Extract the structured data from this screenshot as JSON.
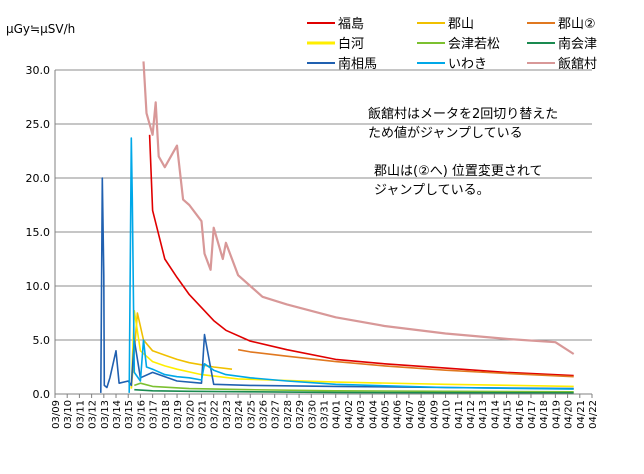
{
  "chart_data": {
    "type": "line",
    "ylabel": "μGy≒μSV/h",
    "ylim": [
      0,
      30
    ],
    "yticks": [
      0,
      5,
      10,
      15,
      20,
      25,
      30
    ],
    "ytick_labels": [
      "0.0",
      "5.0",
      "10.0",
      "15.0",
      "20.0",
      "25.0",
      "30.0"
    ],
    "xlim": [
      "2011-03-09",
      "2011-04-22"
    ],
    "x_tick_labels": [
      "03/09",
      "03/10",
      "03/11",
      "03/12",
      "03/13",
      "03/14",
      "03/15",
      "03/16",
      "03/17",
      "03/18",
      "03/19",
      "03/20",
      "03/21",
      "03/22",
      "03/23",
      "03/24",
      "03/25",
      "03/26",
      "03/27",
      "03/28",
      "03/29",
      "03/30",
      "03/31",
      "04/01",
      "04/02",
      "04/03",
      "04/04",
      "04/05",
      "04/06",
      "04/07",
      "04/08",
      "04/09",
      "04/10",
      "04/11",
      "04/12",
      "04/13",
      "04/14",
      "04/15",
      "04/16",
      "04/17",
      "04/18",
      "04/19",
      "04/20",
      "04/21",
      "04/22"
    ],
    "grid": "horizontal",
    "legend_position": "top",
    "annotations": [
      "飯舘村はメータを2回切り替えた",
      "ため値がジャンプしている",
      "郡山は(②へ) 位置変更されて",
      "ジャンプしている。"
    ],
    "series": [
      {
        "name": "福島",
        "color": "#e00000",
        "x": [
          "2011-03-16T18:00",
          "2011-03-17",
          "2011-03-18",
          "2011-03-19",
          "2011-03-20",
          "2011-03-21",
          "2011-03-22",
          "2011-03-23",
          "2011-03-25",
          "2011-03-28",
          "2011-04-01",
          "2011-04-05",
          "2011-04-10",
          "2011-04-15",
          "2011-04-20T12:00"
        ],
        "values": [
          24.0,
          17.0,
          12.5,
          10.8,
          9.2,
          8.0,
          6.8,
          5.9,
          4.9,
          4.1,
          3.2,
          2.8,
          2.4,
          2.0,
          1.7
        ]
      },
      {
        "name": "郡山",
        "color": "#f0c000",
        "x": [
          "2011-03-15T06:00",
          "2011-03-15T18:00",
          "2011-03-16T06:00",
          "2011-03-17",
          "2011-03-18",
          "2011-03-19",
          "2011-03-20",
          "2011-03-21",
          "2011-03-22",
          "2011-03-23T12:00"
        ],
        "values": [
          0.5,
          7.5,
          5.0,
          4.0,
          3.6,
          3.2,
          2.9,
          2.7,
          2.5,
          2.3
        ]
      },
      {
        "name": "郡山②",
        "color": "#e07820",
        "x": [
          "2011-03-24",
          "2011-03-25",
          "2011-03-28",
          "2011-04-01",
          "2011-04-05",
          "2011-04-10",
          "2011-04-15",
          "2011-04-20T12:00"
        ],
        "values": [
          4.1,
          3.9,
          3.5,
          3.0,
          2.6,
          2.2,
          1.9,
          1.6
        ]
      },
      {
        "name": "白河",
        "color": "#ffee00",
        "x": [
          "2011-03-15T06:00",
          "2011-03-15T12:00",
          "2011-03-16",
          "2011-03-17",
          "2011-03-18",
          "2011-03-19",
          "2011-03-21",
          "2011-03-24",
          "2011-04-01",
          "2011-04-10",
          "2011-04-20T12:00"
        ],
        "values": [
          0.5,
          7.7,
          4.0,
          3.0,
          2.6,
          2.3,
          1.8,
          1.4,
          1.1,
          0.9,
          0.7
        ]
      },
      {
        "name": "会津若松",
        "color": "#7cc030",
        "x": [
          "2011-03-15T12:00",
          "2011-03-16",
          "2011-03-17",
          "2011-03-20",
          "2011-03-25",
          "2011-04-01",
          "2011-04-10",
          "2011-04-20T12:00"
        ],
        "values": [
          0.8,
          1.0,
          0.7,
          0.5,
          0.4,
          0.3,
          0.25,
          0.2
        ]
      },
      {
        "name": "南会津",
        "color": "#1a8a50",
        "x": [
          "2011-03-15T12:00",
          "2011-03-17",
          "2011-03-20",
          "2011-03-25",
          "2011-04-01",
          "2011-04-10",
          "2011-04-20T12:00"
        ],
        "values": [
          0.4,
          0.3,
          0.25,
          0.2,
          0.15,
          0.12,
          0.1
        ]
      },
      {
        "name": "南相馬",
        "color": "#2060b0",
        "x": [
          "2011-03-12T18:00",
          "2011-03-12T21:00",
          "2011-03-13",
          "2011-03-13T01:00",
          "2011-03-13T06:00",
          "2011-03-13T12:00",
          "2011-03-14",
          "2011-03-14T06:00",
          "2011-03-15",
          "2011-03-15T06:00",
          "2011-03-15T12:00",
          "2011-03-16",
          "2011-03-17",
          "2011-03-19",
          "2011-03-21",
          "2011-03-21T06:00",
          "2011-03-22",
          "2011-03-25",
          "2011-04-01",
          "2011-04-10",
          "2011-04-20T12:00"
        ],
        "values": [
          0.1,
          20.0,
          11.0,
          0.8,
          0.6,
          1.5,
          4.0,
          1.0,
          1.2,
          0.8,
          5.0,
          1.5,
          2.0,
          1.2,
          1.0,
          5.5,
          0.9,
          0.8,
          0.7,
          0.6,
          0.5
        ]
      },
      {
        "name": "いわき",
        "color": "#00a8e8",
        "x": [
          "2011-03-15T02:00",
          "2011-03-15T06:00",
          "2011-03-15T08:00",
          "2011-03-15T12:00",
          "2011-03-16",
          "2011-03-16T06:00",
          "2011-03-16T12:00",
          "2011-03-17",
          "2011-03-18",
          "2011-03-19",
          "2011-03-20",
          "2011-03-21",
          "2011-03-21T06:00",
          "2011-03-22",
          "2011-03-23",
          "2011-03-25",
          "2011-03-28",
          "2011-04-01",
          "2011-04-10",
          "2011-04-20T12:00"
        ],
        "values": [
          0.1,
          23.7,
          18.0,
          2.0,
          1.2,
          5.0,
          2.5,
          2.3,
          1.8,
          1.6,
          1.5,
          1.3,
          2.8,
          2.2,
          1.8,
          1.5,
          1.2,
          0.9,
          0.6,
          0.45
        ]
      },
      {
        "name": "飯舘村",
        "color": "#d89898",
        "x": [
          "2011-03-16T06:00",
          "2011-03-16T12:00",
          "2011-03-17",
          "2011-03-17T06:00",
          "2011-03-17T12:00",
          "2011-03-18",
          "2011-03-19",
          "2011-03-19T12:00",
          "2011-03-20",
          "2011-03-21",
          "2011-03-21T06:00",
          "2011-03-21T18:00",
          "2011-03-22",
          "2011-03-22T18:00",
          "2011-03-23",
          "2011-03-24",
          "2011-03-25",
          "2011-03-26",
          "2011-03-28",
          "2011-04-01",
          "2011-04-05",
          "2011-04-10",
          "2011-04-15",
          "2011-04-19",
          "2011-04-20T12:00"
        ],
        "values": [
          30.8,
          26.0,
          24.0,
          27.0,
          22.0,
          21.0,
          23.0,
          18.0,
          17.5,
          16.0,
          13.0,
          11.5,
          15.4,
          12.5,
          14.0,
          11.0,
          10.0,
          9.0,
          8.3,
          7.1,
          6.3,
          5.6,
          5.1,
          4.8,
          3.7
        ]
      }
    ]
  }
}
